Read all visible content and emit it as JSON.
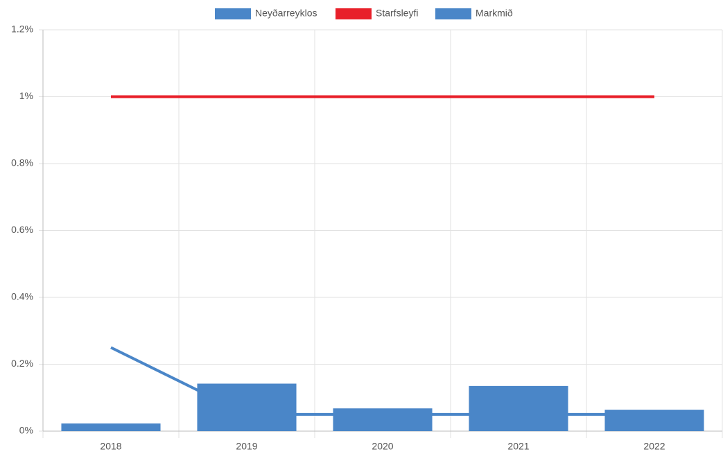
{
  "chart_data": {
    "type": "bar",
    "categories": [
      "2018",
      "2019",
      "2020",
      "2021",
      "2022"
    ],
    "series": [
      {
        "name": "Neyðarreyklos",
        "type": "bar",
        "color": "#4a86c8",
        "values": [
          0.023,
          0.142,
          0.068,
          0.135,
          0.064
        ]
      },
      {
        "name": "Starfsleyfi",
        "type": "line",
        "color": "#e8202a",
        "values": [
          1,
          1,
          1,
          1,
          1
        ]
      },
      {
        "name": "Markmið",
        "type": "line",
        "color": "#4a86c8",
        "values": [
          0.25,
          0.05,
          0.05,
          0.05,
          0.05
        ]
      }
    ],
    "ylim": [
      0,
      1.2
    ],
    "yticks": [
      {
        "value": 0,
        "label": "0%"
      },
      {
        "value": 0.2,
        "label": "0.2%"
      },
      {
        "value": 0.4,
        "label": "0.4%"
      },
      {
        "value": 0.6,
        "label": "0.6%"
      },
      {
        "value": 0.8,
        "label": "0.8%"
      },
      {
        "value": 1,
        "label": "1%"
      },
      {
        "value": 1.2,
        "label": "1.2%"
      }
    ],
    "grid": true,
    "legend": "top"
  }
}
